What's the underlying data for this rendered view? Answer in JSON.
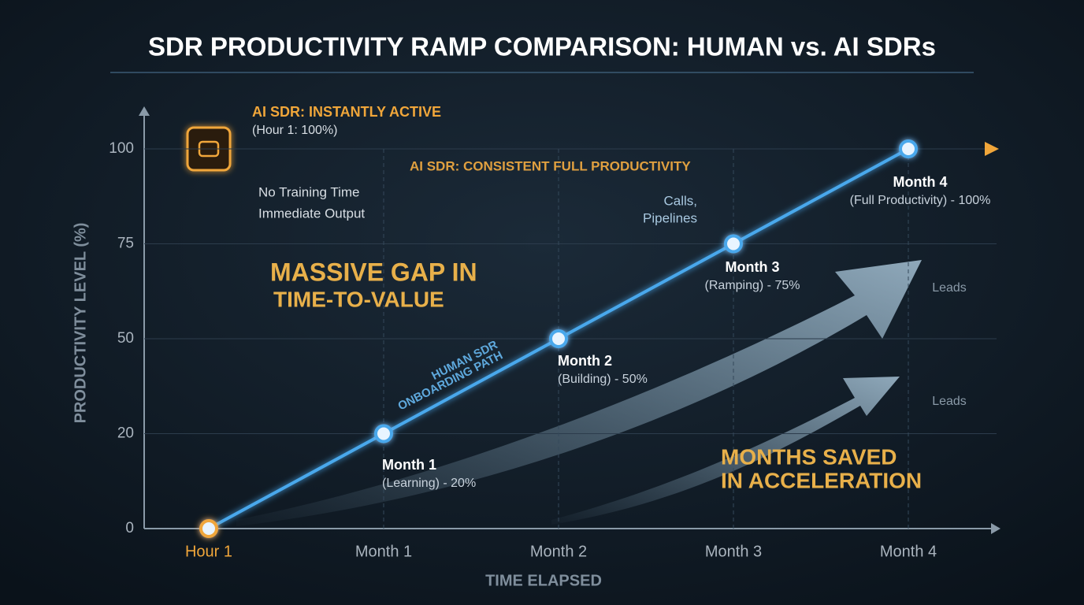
{
  "chart_data": {
    "type": "line",
    "title": "SDR PRODUCTIVITY RAMP COMPARISON: HUMAN vs. AI SDRs",
    "x_label": "TIME ELAPSED",
    "y_label": "PRODUCTIVITY LEVEL (%)",
    "categories": [
      "Hour 1",
      "Month 1",
      "Month 2",
      "Month 3",
      "Month 4"
    ],
    "ylim": [
      0,
      100
    ],
    "yticks": [
      0,
      20,
      50,
      75,
      100
    ],
    "grid": true,
    "series": [
      {
        "name": "AI SDR",
        "color": "#f0a63a",
        "values": [
          100,
          100,
          100,
          100,
          100
        ]
      },
      {
        "name": "HUMAN SDR",
        "color": "#4aa8ec",
        "values": [
          0,
          20,
          50,
          75,
          100
        ],
        "point_titles": [
          null,
          "Month 1",
          "Month 2",
          "Month 3",
          "Month 4"
        ],
        "value_labels": [
          null,
          "(Learning) - 20%",
          "(Building) - 50%",
          "(Ramping) - 75%",
          "(Full Productivity) - 100%"
        ]
      }
    ],
    "annotations": [
      "AI SDR: INSTANTLY ACTIVE",
      "(Hour 1: 100%)",
      "No Training Time",
      "Immediate Output",
      "AI SDR: CONSISTENT FULL PRODUCTIVITY",
      "MASSIVE GAP IN",
      "TIME-TO-VALUE",
      "HUMAN SDR",
      "ONBOARDING PATH",
      "Calls,",
      "Pipelines",
      "Leads",
      "Leads",
      "MONTHS SAVED",
      "IN ACCELERATION"
    ]
  }
}
